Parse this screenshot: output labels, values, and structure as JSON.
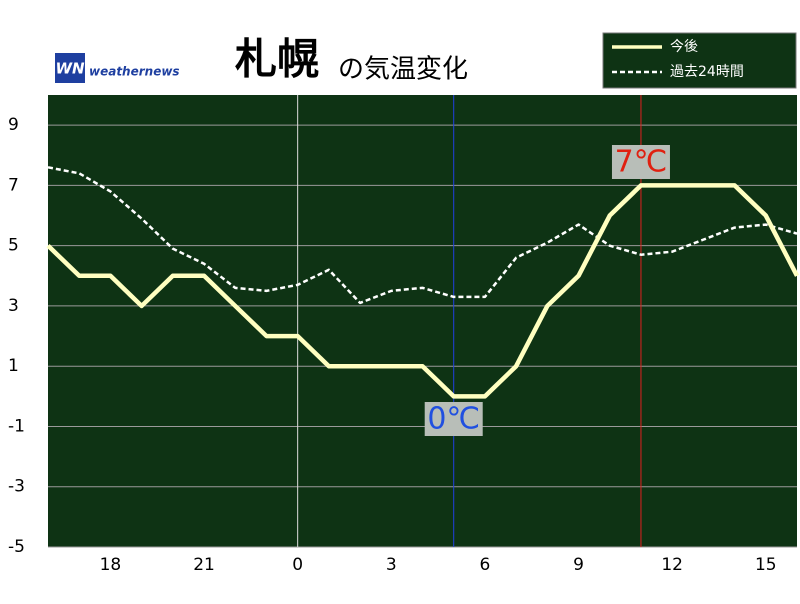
{
  "chart_data": {
    "type": "line",
    "title": "札幌",
    "subtitle": "の気温変化",
    "logo_mark": "WN",
    "logo_text": "weathernews",
    "categories": [
      null,
      null,
      "18",
      null,
      null,
      "21",
      null,
      null,
      "0",
      null,
      null,
      "3",
      null,
      null,
      "6",
      null,
      null,
      "9",
      null,
      null,
      "12",
      null,
      null,
      "15",
      null
    ],
    "series": [
      {
        "name": "今後",
        "color": "#ffffc0",
        "dashed": false,
        "values": [
          5,
          4,
          4,
          3,
          4,
          4,
          3,
          2,
          2,
          1,
          1,
          1,
          1,
          0,
          0,
          1,
          3,
          4,
          6,
          7,
          7,
          7,
          7,
          6,
          4
        ]
      },
      {
        "name": "過去24時間",
        "color": "#ffffff",
        "dashed": true,
        "values": [
          7.6,
          7.4,
          6.8,
          5.9,
          4.9,
          4.4,
          3.6,
          3.5,
          3.7,
          4.2,
          3.1,
          3.5,
          3.6,
          3.3,
          3.3,
          4.6,
          5.1,
          5.7,
          5.0,
          4.7,
          4.8,
          5.2,
          5.6,
          5.7,
          5.4
        ]
      }
    ],
    "max_label": "7℃",
    "min_label": "0℃",
    "zero_category": "0",
    "ylim": [
      -5,
      10
    ],
    "yticks": [
      9,
      7,
      5,
      3,
      1,
      -1,
      -3,
      -5
    ],
    "grid": true,
    "legend": "top-right"
  }
}
